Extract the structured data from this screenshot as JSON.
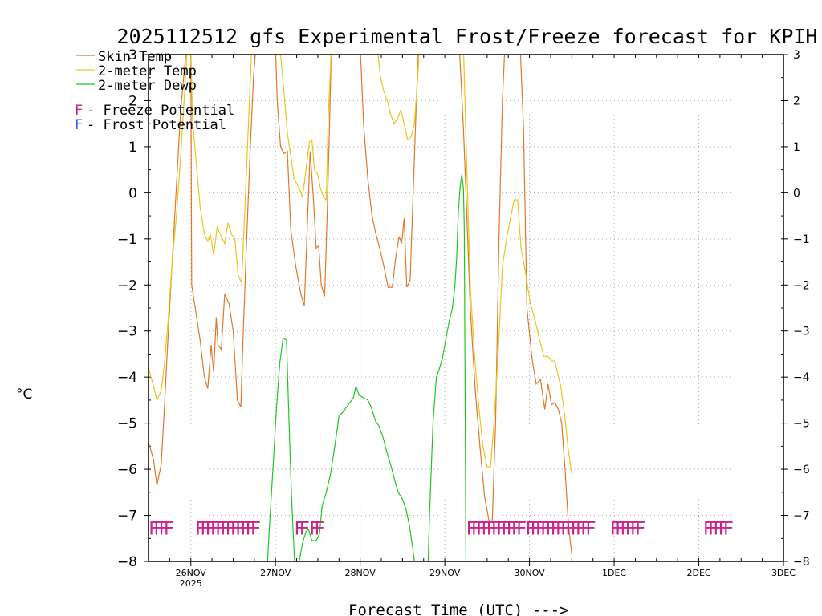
{
  "chart_data": {
    "type": "line",
    "title": "2025112512 gfs Experimental Frost/Freeze forecast for KPIH",
    "ylabel": "°C",
    "xlabel": "Forecast Time (UTC) --->",
    "ylim": [
      -8,
      3
    ],
    "xlim": [
      25.5,
      33.0
    ],
    "y_ticks": [
      3,
      2,
      1,
      0,
      -1,
      -2,
      -3,
      -4,
      -5,
      -6,
      -7,
      -8
    ],
    "y_tick_labels": [
      "3",
      "2",
      "1",
      "0",
      "−1",
      "−2",
      "−3",
      "−4",
      "−5",
      "−6",
      "−7",
      "−8"
    ],
    "x_ticks": [
      {
        "x": 26,
        "label": "26NOV",
        "sub": "2025"
      },
      {
        "x": 27,
        "label": "27NOV",
        "sub": ""
      },
      {
        "x": 28,
        "label": "28NOV",
        "sub": ""
      },
      {
        "x": 29,
        "label": "29NOV",
        "sub": ""
      },
      {
        "x": 30,
        "label": "30NOV",
        "sub": ""
      },
      {
        "x": 31,
        "label": "1DEC",
        "sub": ""
      },
      {
        "x": 32,
        "label": "2DEC",
        "sub": ""
      },
      {
        "x": 33,
        "label": "3DEC",
        "sub": ""
      }
    ],
    "grid": true,
    "legend": [
      {
        "label": "Skin Temp",
        "color": "#e0782c"
      },
      {
        "label": "2-meter Temp",
        "color": "#e6c81e"
      },
      {
        "label": "2-meter Dewp",
        "color": "#1ec81e"
      }
    ],
    "potential_legend": [
      {
        "symbol": "F",
        "label": " - Freeze Potential",
        "color": "#d0208a"
      },
      {
        "symbol": "F",
        "label": " - Frost Potential",
        "color": "#4a4aff"
      }
    ],
    "freeze_markers": [
      {
        "x": 25.5,
        "text": "FFFF"
      },
      {
        "x": 26.05,
        "text": "FFFFFFFFFFFF"
      },
      {
        "x": 27.22,
        "text": "FF FF"
      },
      {
        "x": 29.25,
        "text": "FFFFFFFFFFF"
      },
      {
        "x": 29.95,
        "text": "FFFFFFFFFFFFF"
      },
      {
        "x": 30.95,
        "text": "FFFFFF"
      },
      {
        "x": 32.05,
        "text": "FFFFF"
      }
    ],
    "series": [
      {
        "name": "Skin Temp",
        "color": "#e0782c",
        "points": [
          [
            25.5,
            -5.4
          ],
          [
            25.56,
            -5.8
          ],
          [
            25.6,
            -6.35
          ],
          [
            25.65,
            -5.9
          ],
          [
            25.69,
            -4.6
          ],
          [
            25.72,
            -3.5
          ],
          [
            25.78,
            -1.5
          ],
          [
            25.84,
            0.5
          ],
          [
            25.88,
            1.8
          ],
          [
            25.92,
            2.6
          ],
          [
            25.95,
            3.2
          ],
          [
            26.0,
            3.2
          ],
          [
            26.01,
            -2.0
          ],
          [
            26.06,
            -2.6
          ],
          [
            26.11,
            -3.2
          ],
          [
            26.16,
            -4.0
          ],
          [
            26.2,
            -4.25
          ],
          [
            26.24,
            -3.3
          ],
          [
            26.27,
            -3.9
          ],
          [
            26.3,
            -2.7
          ],
          [
            26.32,
            -3.3
          ],
          [
            26.36,
            -3.4
          ],
          [
            26.4,
            -2.2
          ],
          [
            26.45,
            -2.4
          ],
          [
            26.5,
            -3.0
          ],
          [
            26.55,
            -4.5
          ],
          [
            26.59,
            -4.65
          ],
          [
            26.62,
            -3.0
          ],
          [
            26.66,
            -1.0
          ],
          [
            26.7,
            0.9
          ],
          [
            26.74,
            2.5
          ],
          [
            26.77,
            3.2
          ],
          [
            27.0,
            3.2
          ],
          [
            27.02,
            2.0
          ],
          [
            27.06,
            1.0
          ],
          [
            27.1,
            0.85
          ],
          [
            27.14,
            0.9
          ],
          [
            27.18,
            -0.8
          ],
          [
            27.24,
            -1.6
          ],
          [
            27.3,
            -2.2
          ],
          [
            27.34,
            -2.45
          ],
          [
            27.38,
            -0.5
          ],
          [
            27.41,
            0.9
          ],
          [
            27.45,
            -0.2
          ],
          [
            27.48,
            -1.2
          ],
          [
            27.51,
            -1.15
          ],
          [
            27.54,
            -2.0
          ],
          [
            27.58,
            -2.25
          ],
          [
            27.61,
            -0.5
          ],
          [
            27.64,
            1.6
          ],
          [
            27.66,
            3.2
          ],
          [
            28.0,
            3.2
          ],
          [
            28.04,
            1.5
          ],
          [
            28.09,
            0.3
          ],
          [
            28.14,
            -0.5
          ],
          [
            28.18,
            -0.85
          ],
          [
            28.23,
            -1.2
          ],
          [
            28.28,
            -1.6
          ],
          [
            28.33,
            -2.05
          ],
          [
            28.38,
            -2.05
          ],
          [
            28.42,
            -1.4
          ],
          [
            28.46,
            -0.95
          ],
          [
            28.49,
            -1.1
          ],
          [
            28.52,
            -0.55
          ],
          [
            28.55,
            -2.05
          ],
          [
            28.59,
            -1.9
          ],
          [
            28.62,
            -0.3
          ],
          [
            28.66,
            1.8
          ],
          [
            28.69,
            3.2
          ],
          [
            29.17,
            3.2
          ],
          [
            29.22,
            1.4
          ],
          [
            29.26,
            -0.5
          ],
          [
            29.3,
            -2.5
          ],
          [
            29.36,
            -4.3
          ],
          [
            29.42,
            -5.6
          ],
          [
            29.47,
            -6.6
          ],
          [
            29.52,
            -7.1
          ],
          [
            29.56,
            -7.15
          ],
          [
            29.6,
            -5.0
          ],
          [
            29.64,
            -1.0
          ],
          [
            29.68,
            2.0
          ],
          [
            29.71,
            3.2
          ],
          [
            29.89,
            3.2
          ],
          [
            29.93,
            1.4
          ],
          [
            29.97,
            -2.5
          ],
          [
            30.03,
            -3.6
          ],
          [
            30.08,
            -4.15
          ],
          [
            30.13,
            -4.05
          ],
          [
            30.18,
            -4.7
          ],
          [
            30.22,
            -4.15
          ],
          [
            30.26,
            -4.6
          ],
          [
            30.3,
            -4.55
          ],
          [
            30.34,
            -4.7
          ],
          [
            30.38,
            -5.0
          ],
          [
            30.42,
            -6.0
          ],
          [
            30.46,
            -7.2
          ],
          [
            30.5,
            -7.85
          ]
        ]
      },
      {
        "name": "2-meter Temp",
        "color": "#e6c81e",
        "points": [
          [
            25.5,
            -3.8
          ],
          [
            25.56,
            -4.2
          ],
          [
            25.6,
            -4.5
          ],
          [
            25.65,
            -4.3
          ],
          [
            25.69,
            -3.7
          ],
          [
            25.73,
            -2.8
          ],
          [
            25.78,
            -1.5
          ],
          [
            25.83,
            -0.5
          ],
          [
            25.88,
            0.8
          ],
          [
            25.92,
            2.0
          ],
          [
            25.96,
            3.2
          ],
          [
            26.0,
            3.2
          ],
          [
            26.02,
            1.6
          ],
          [
            26.07,
            0.5
          ],
          [
            26.11,
            -0.3
          ],
          [
            26.16,
            -0.9
          ],
          [
            26.2,
            -1.05
          ],
          [
            26.23,
            -0.9
          ],
          [
            26.27,
            -1.35
          ],
          [
            26.31,
            -0.75
          ],
          [
            26.36,
            -0.95
          ],
          [
            26.4,
            -1.1
          ],
          [
            26.44,
            -0.65
          ],
          [
            26.48,
            -0.9
          ],
          [
            26.52,
            -1.0
          ],
          [
            26.56,
            -1.8
          ],
          [
            26.6,
            -1.95
          ],
          [
            26.64,
            -0.3
          ],
          [
            26.68,
            1.5
          ],
          [
            26.72,
            3.2
          ],
          [
            27.05,
            3.2
          ],
          [
            27.1,
            2.2
          ],
          [
            27.14,
            1.3
          ],
          [
            27.18,
            0.8
          ],
          [
            27.22,
            0.3
          ],
          [
            27.28,
            0.1
          ],
          [
            27.32,
            -0.1
          ],
          [
            27.36,
            0.5
          ],
          [
            27.4,
            1.1
          ],
          [
            27.43,
            1.15
          ],
          [
            27.46,
            0.5
          ],
          [
            27.5,
            0.4
          ],
          [
            27.53,
            0.1
          ],
          [
            27.57,
            -0.1
          ],
          [
            27.6,
            -0.15
          ],
          [
            27.62,
            1.5
          ],
          [
            27.66,
            3.2
          ],
          [
            28.2,
            3.2
          ],
          [
            28.24,
            2.5
          ],
          [
            28.28,
            2.2
          ],
          [
            28.32,
            2.0
          ],
          [
            28.36,
            1.7
          ],
          [
            28.4,
            1.5
          ],
          [
            28.44,
            1.6
          ],
          [
            28.48,
            1.8
          ],
          [
            28.52,
            1.5
          ],
          [
            28.56,
            1.15
          ],
          [
            28.6,
            1.2
          ],
          [
            28.64,
            1.5
          ],
          [
            28.68,
            2.5
          ],
          [
            28.7,
            3.2
          ],
          [
            29.22,
            3.2
          ],
          [
            29.26,
            0.5
          ],
          [
            29.3,
            -2.0
          ],
          [
            29.35,
            -3.5
          ],
          [
            29.4,
            -4.6
          ],
          [
            29.45,
            -5.5
          ],
          [
            29.5,
            -5.95
          ],
          [
            29.54,
            -5.95
          ],
          [
            29.58,
            -5.0
          ],
          [
            29.63,
            -3.5
          ],
          [
            29.68,
            -1.6
          ],
          [
            29.73,
            -1.0
          ],
          [
            29.78,
            -0.5
          ],
          [
            29.82,
            -0.15
          ],
          [
            29.86,
            -0.15
          ],
          [
            29.9,
            -1.2
          ],
          [
            29.95,
            -1.7
          ],
          [
            30.01,
            -2.4
          ],
          [
            30.07,
            -2.8
          ],
          [
            30.12,
            -3.2
          ],
          [
            30.17,
            -3.55
          ],
          [
            30.22,
            -3.55
          ],
          [
            30.26,
            -3.65
          ],
          [
            30.3,
            -3.65
          ],
          [
            30.33,
            -3.9
          ],
          [
            30.37,
            -4.2
          ],
          [
            30.42,
            -4.9
          ],
          [
            30.46,
            -5.6
          ],
          [
            30.5,
            -6.1
          ]
        ]
      },
      {
        "name": "2-meter Dewp",
        "color": "#1ec81e",
        "points": [
          [
            26.9,
            -8.2
          ],
          [
            26.93,
            -7.2
          ],
          [
            26.97,
            -6.0
          ],
          [
            27.01,
            -4.7
          ],
          [
            27.05,
            -3.7
          ],
          [
            27.09,
            -3.15
          ],
          [
            27.13,
            -3.2
          ],
          [
            27.16,
            -5.0
          ],
          [
            27.19,
            -6.6
          ],
          [
            27.22,
            -7.8
          ],
          [
            27.23,
            -8.2
          ],
          [
            27.26,
            -8.2
          ],
          [
            27.28,
            -8.0
          ],
          [
            27.32,
            -7.6
          ],
          [
            27.36,
            -7.35
          ],
          [
            27.39,
            -7.3
          ],
          [
            27.43,
            -7.55
          ],
          [
            27.48,
            -7.55
          ],
          [
            27.52,
            -7.4
          ],
          [
            27.55,
            -6.8
          ],
          [
            27.6,
            -6.5
          ],
          [
            27.65,
            -6.1
          ],
          [
            27.7,
            -5.5
          ],
          [
            27.75,
            -4.85
          ],
          [
            27.8,
            -4.75
          ],
          [
            27.86,
            -4.6
          ],
          [
            27.92,
            -4.45
          ],
          [
            27.95,
            -4.2
          ],
          [
            27.99,
            -4.4
          ],
          [
            28.04,
            -4.45
          ],
          [
            28.09,
            -4.5
          ],
          [
            28.13,
            -4.65
          ],
          [
            28.18,
            -4.95
          ],
          [
            28.22,
            -5.05
          ],
          [
            28.27,
            -5.3
          ],
          [
            28.31,
            -5.6
          ],
          [
            28.36,
            -5.9
          ],
          [
            28.41,
            -6.25
          ],
          [
            28.45,
            -6.5
          ],
          [
            28.5,
            -6.65
          ],
          [
            28.54,
            -6.85
          ],
          [
            28.58,
            -7.2
          ],
          [
            28.62,
            -7.7
          ],
          [
            28.64,
            -8.0
          ],
          [
            28.66,
            -8.2
          ],
          [
            28.8,
            -8.2
          ],
          [
            28.82,
            -7.0
          ],
          [
            28.86,
            -5.0
          ],
          [
            28.9,
            -4.0
          ],
          [
            28.93,
            -3.85
          ],
          [
            28.97,
            -3.6
          ],
          [
            29.01,
            -3.2
          ],
          [
            29.05,
            -2.8
          ],
          [
            29.09,
            -2.5
          ],
          [
            29.12,
            -2.0
          ],
          [
            29.14,
            -1.4
          ],
          [
            29.16,
            -0.4
          ],
          [
            29.18,
            0.1
          ],
          [
            29.2,
            0.4
          ],
          [
            29.22,
            0.1
          ],
          [
            29.23,
            -0.8
          ],
          [
            29.25,
            -8.2
          ]
        ]
      }
    ]
  }
}
